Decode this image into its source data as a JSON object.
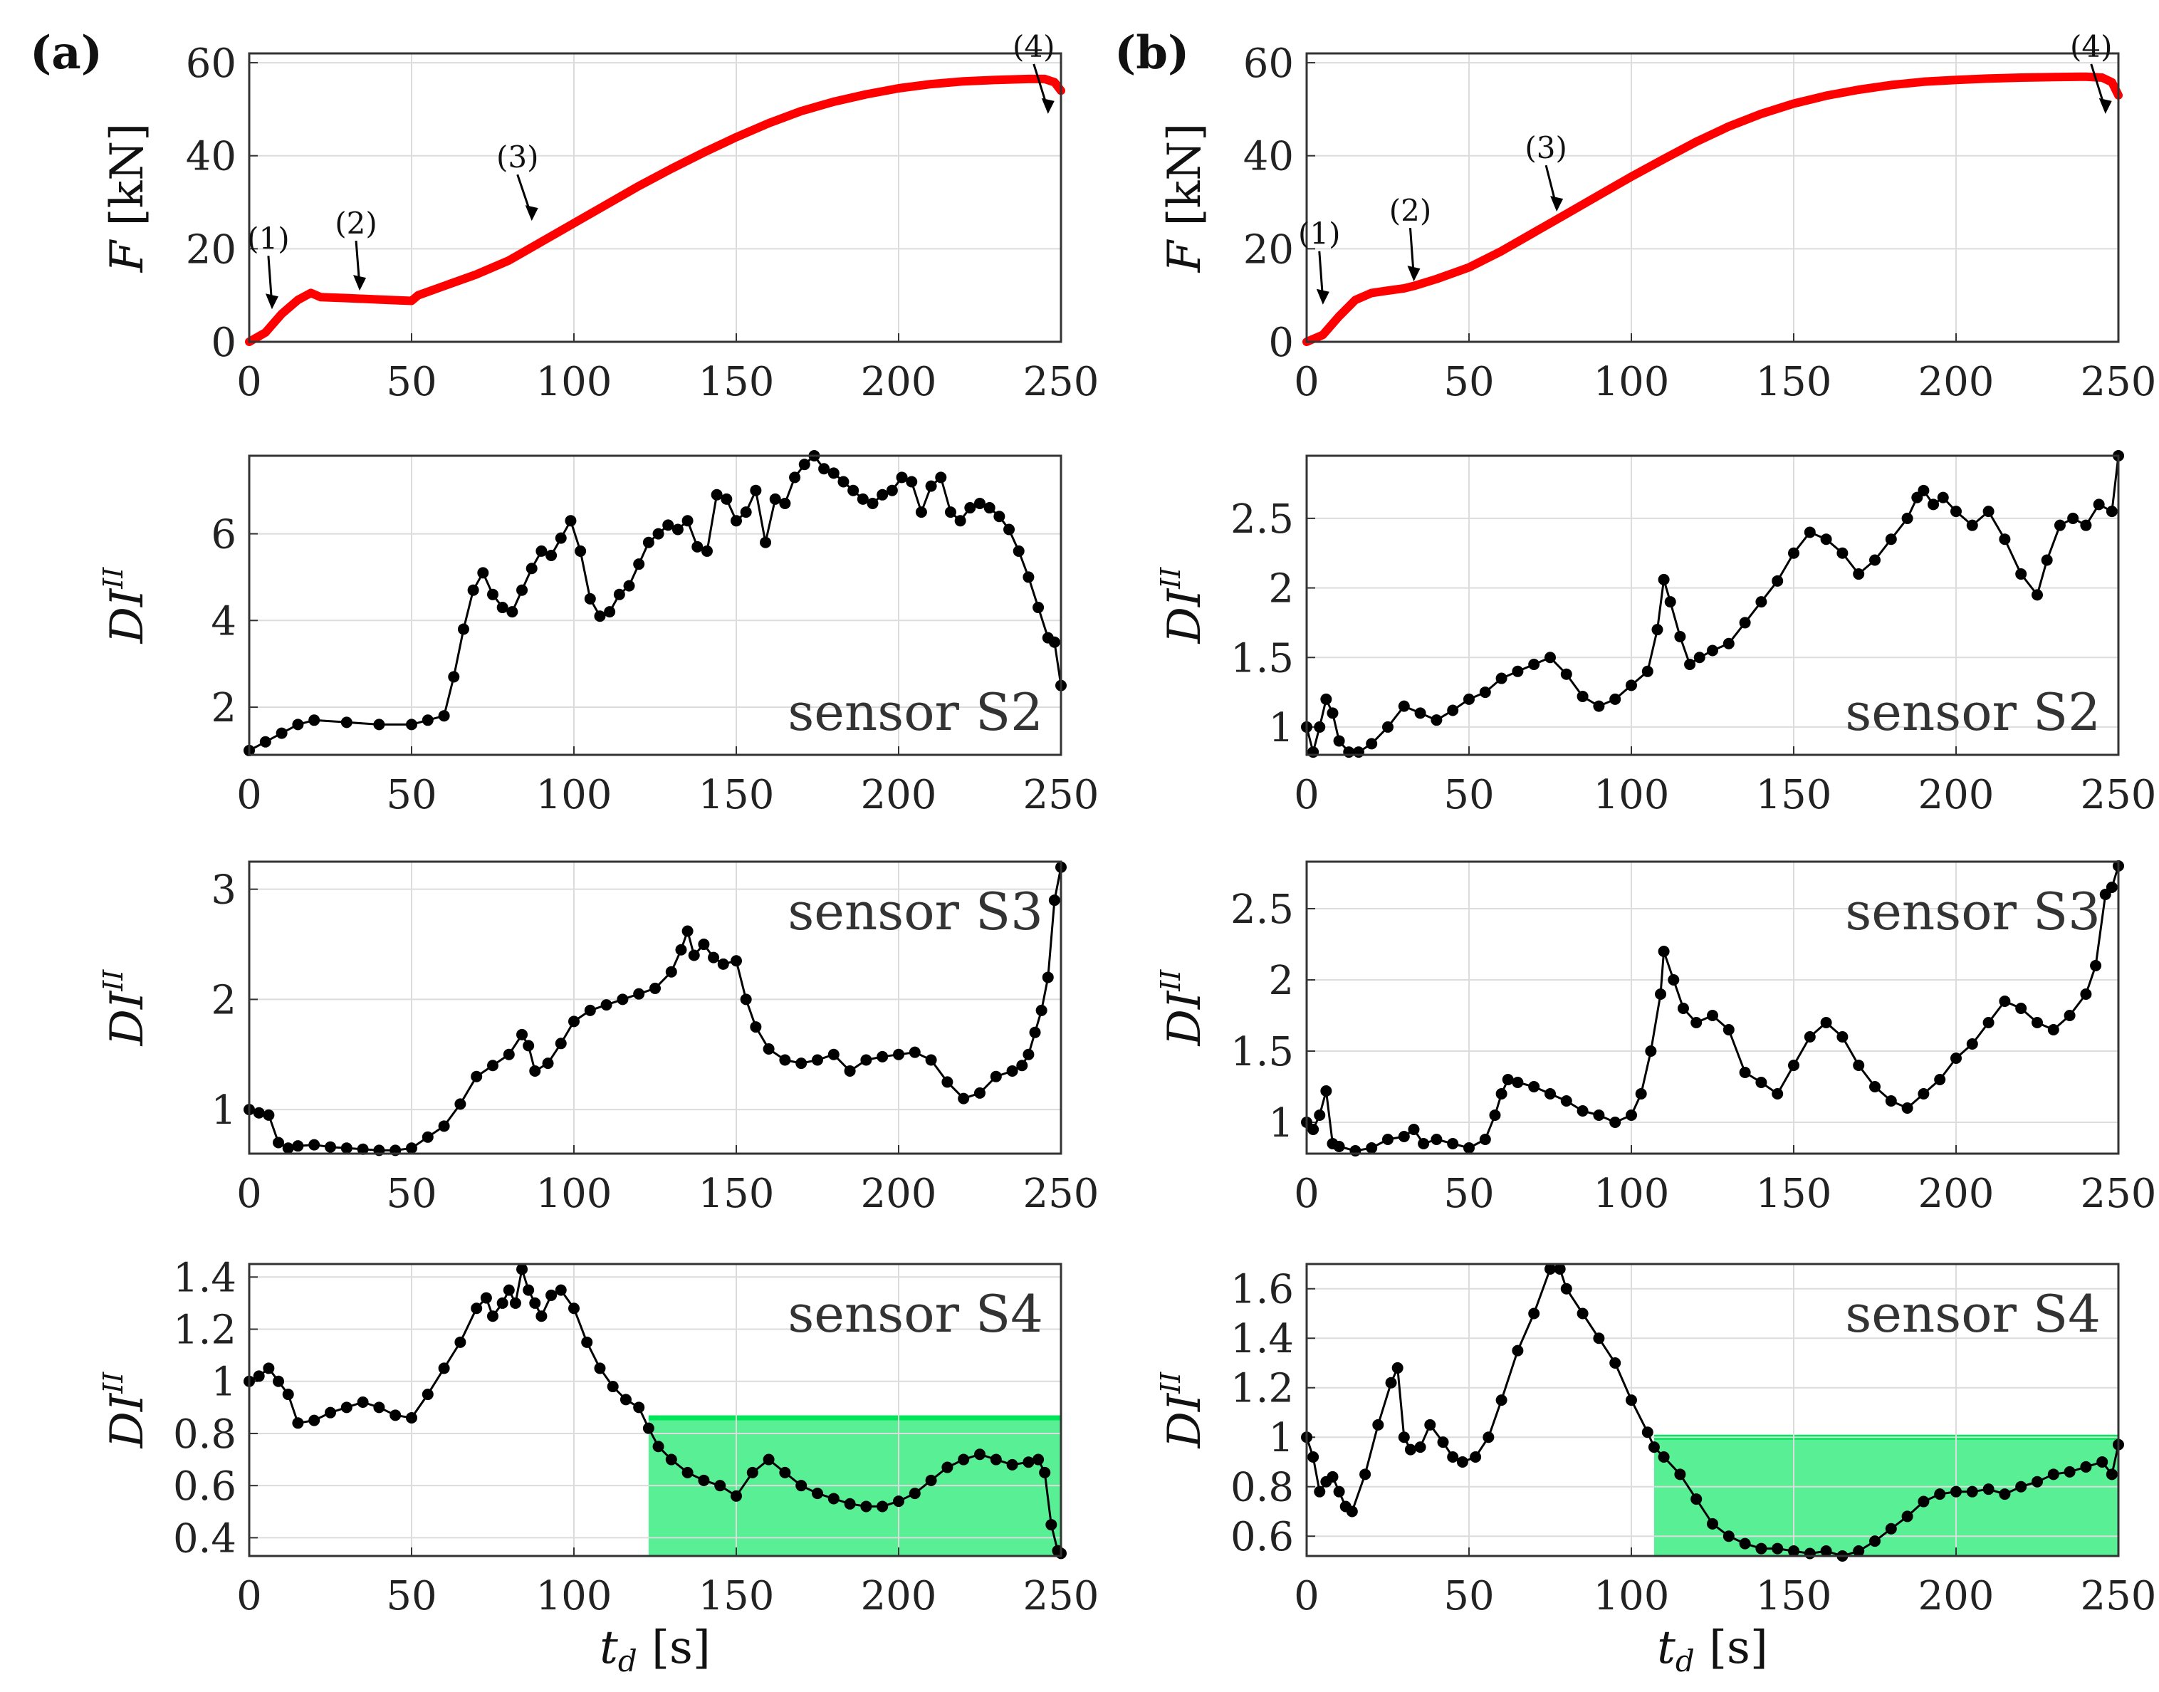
{
  "panel_labels": [
    "(a)",
    "(b)"
  ],
  "chart_data": [
    {
      "id": "a-force",
      "type": "line",
      "panel": "(a)",
      "title": "",
      "xlabel": "",
      "ylabel": "F [kN]",
      "xlim": [
        0,
        250
      ],
      "ylim": [
        0,
        62
      ],
      "xticks": [
        0,
        50,
        100,
        150,
        200,
        250
      ],
      "yticks": [
        0,
        20,
        40,
        60
      ],
      "xtick_labels": [
        "0",
        "50",
        "100",
        "150",
        "200",
        "250"
      ],
      "ytick_labels": [
        "0",
        "20",
        "40",
        "60"
      ],
      "grid": true,
      "color": "#ff0000",
      "markers": false,
      "x": [
        0,
        5,
        10,
        15,
        19,
        22,
        30,
        40,
        50,
        52,
        60,
        70,
        80,
        90,
        100,
        110,
        120,
        130,
        140,
        150,
        160,
        170,
        180,
        190,
        200,
        210,
        220,
        230,
        240,
        245,
        248,
        250
      ],
      "y": [
        0,
        2,
        6,
        9,
        10.5,
        9.6,
        9.4,
        9.1,
        8.8,
        10,
        12,
        14.5,
        17.5,
        21.5,
        25.5,
        29.5,
        33.5,
        37.2,
        40.7,
        44,
        47,
        49.6,
        51.6,
        53.2,
        54.5,
        55.4,
        56,
        56.3,
        56.5,
        56.5,
        55.8,
        54
      ],
      "annotations": [
        {
          "text": "(1)",
          "x": 7,
          "y": 7
        },
        {
          "text": "(2)",
          "x": 34,
          "y": 11
        },
        {
          "text": "(3)",
          "x": 87,
          "y": 26
        },
        {
          "text": "(4)",
          "x": 246,
          "y": 49
        }
      ]
    },
    {
      "id": "a-s2",
      "type": "line",
      "panel": "(a)",
      "title": "",
      "xlabel": "",
      "ylabel": "DI^II",
      "legend_text": "sensor S2",
      "xlim": [
        0,
        250
      ],
      "ylim": [
        0.9,
        7.8
      ],
      "xticks": [
        0,
        50,
        100,
        150,
        200,
        250
      ],
      "yticks": [
        2,
        4,
        6
      ],
      "xtick_labels": [
        "0",
        "50",
        "100",
        "150",
        "200",
        "250"
      ],
      "ytick_labels": [
        "2",
        "4",
        "6"
      ],
      "grid": true,
      "color": "#000000",
      "markers": true,
      "x": [
        0,
        5,
        10,
        15,
        20,
        30,
        40,
        50,
        55,
        60,
        63,
        66,
        69,
        72,
        75,
        78,
        81,
        84,
        87,
        90,
        93,
        96,
        99,
        102,
        105,
        108,
        111,
        114,
        117,
        120,
        123,
        126,
        129,
        132,
        135,
        138,
        141,
        144,
        147,
        150,
        153,
        156,
        159,
        162,
        165,
        168,
        171,
        174,
        177,
        180,
        183,
        186,
        189,
        192,
        195,
        198,
        201,
        204,
        207,
        210,
        213,
        216,
        219,
        222,
        225,
        228,
        231,
        234,
        237,
        240,
        243,
        246,
        248,
        250
      ],
      "y": [
        1,
        1.2,
        1.4,
        1.6,
        1.7,
        1.65,
        1.6,
        1.6,
        1.7,
        1.8,
        2.7,
        3.8,
        4.7,
        5.1,
        4.6,
        4.3,
        4.2,
        4.7,
        5.2,
        5.6,
        5.5,
        5.9,
        6.3,
        5.6,
        4.5,
        4.1,
        4.2,
        4.6,
        4.8,
        5.3,
        5.8,
        6,
        6.2,
        6.1,
        6.3,
        5.7,
        5.6,
        6.9,
        6.8,
        6.3,
        6.5,
        7,
        5.8,
        6.8,
        6.7,
        7.3,
        7.6,
        7.8,
        7.5,
        7.4,
        7.2,
        7.0,
        6.8,
        6.7,
        6.9,
        7.0,
        7.3,
        7.2,
        6.5,
        7.1,
        7.3,
        6.5,
        6.3,
        6.6,
        6.7,
        6.6,
        6.4,
        6.1,
        5.6,
        5.0,
        4.3,
        3.6,
        3.5,
        2.5
      ]
    },
    {
      "id": "a-s3",
      "type": "line",
      "panel": "(a)",
      "title": "",
      "xlabel": "",
      "ylabel": "DI^II",
      "legend_text": "sensor S3",
      "xlim": [
        0,
        250
      ],
      "ylim": [
        0.6,
        3.25
      ],
      "xticks": [
        0,
        50,
        100,
        150,
        200,
        250
      ],
      "yticks": [
        1,
        2,
        3
      ],
      "xtick_labels": [
        "0",
        "50",
        "100",
        "150",
        "200",
        "250"
      ],
      "ytick_labels": [
        "1",
        "2",
        "3"
      ],
      "grid": true,
      "color": "#000000",
      "markers": true,
      "x": [
        0,
        3,
        6,
        9,
        12,
        15,
        20,
        25,
        30,
        35,
        40,
        45,
        50,
        55,
        60,
        65,
        70,
        75,
        80,
        84,
        86,
        88,
        92,
        96,
        100,
        105,
        110,
        115,
        120,
        125,
        130,
        133,
        135,
        137,
        140,
        143,
        146,
        150,
        153,
        156,
        160,
        165,
        170,
        175,
        180,
        185,
        190,
        195,
        200,
        205,
        210,
        215,
        220,
        225,
        230,
        235,
        238,
        240,
        242,
        244,
        246,
        248,
        250
      ],
      "y": [
        1,
        0.97,
        0.95,
        0.7,
        0.65,
        0.67,
        0.68,
        0.66,
        0.65,
        0.64,
        0.63,
        0.63,
        0.65,
        0.75,
        0.85,
        1.05,
        1.3,
        1.4,
        1.5,
        1.68,
        1.58,
        1.35,
        1.42,
        1.6,
        1.8,
        1.9,
        1.95,
        2.0,
        2.05,
        2.1,
        2.25,
        2.45,
        2.62,
        2.4,
        2.5,
        2.38,
        2.32,
        2.35,
        2.0,
        1.75,
        1.55,
        1.45,
        1.42,
        1.45,
        1.5,
        1.35,
        1.45,
        1.48,
        1.5,
        1.52,
        1.45,
        1.25,
        1.1,
        1.15,
        1.3,
        1.35,
        1.4,
        1.5,
        1.7,
        1.9,
        2.2,
        2.9,
        3.2
      ]
    },
    {
      "id": "a-s4",
      "type": "line",
      "panel": "(a)",
      "title": "",
      "xlabel": "t_d [s]",
      "ylabel": "DI^II",
      "legend_text": "sensor S4",
      "xlim": [
        0,
        250
      ],
      "ylim": [
        0.33,
        1.45
      ],
      "xticks": [
        0,
        50,
        100,
        150,
        200,
        250
      ],
      "yticks": [
        0.4,
        0.6,
        0.8,
        1,
        1.2,
        1.4
      ],
      "xtick_labels": [
        "0",
        "50",
        "100",
        "150",
        "200",
        "250"
      ],
      "ytick_labels": [
        "0.4",
        "0.6",
        "0.8",
        "1",
        "1.2",
        "1.4"
      ],
      "grid": true,
      "color": "#000000",
      "markers": true,
      "highlight": {
        "x_from": 123,
        "x_to": 250,
        "y_top": 0.86,
        "color": "#00e65a"
      },
      "x": [
        0,
        3,
        6,
        9,
        12,
        15,
        20,
        25,
        30,
        35,
        40,
        45,
        50,
        55,
        60,
        65,
        70,
        73,
        75,
        78,
        80,
        82,
        84,
        86,
        88,
        90,
        93,
        96,
        100,
        104,
        108,
        112,
        116,
        120,
        123,
        126,
        130,
        135,
        140,
        145,
        150,
        155,
        160,
        165,
        170,
        175,
        180,
        185,
        190,
        195,
        200,
        205,
        210,
        215,
        220,
        225,
        230,
        235,
        240,
        243,
        245,
        247,
        249,
        250
      ],
      "y": [
        1.0,
        1.02,
        1.05,
        1.0,
        0.95,
        0.84,
        0.85,
        0.88,
        0.9,
        0.92,
        0.9,
        0.87,
        0.86,
        0.95,
        1.05,
        1.15,
        1.28,
        1.32,
        1.25,
        1.3,
        1.35,
        1.3,
        1.43,
        1.35,
        1.3,
        1.25,
        1.33,
        1.35,
        1.28,
        1.15,
        1.05,
        0.98,
        0.93,
        0.9,
        0.82,
        0.75,
        0.7,
        0.65,
        0.62,
        0.6,
        0.56,
        0.65,
        0.7,
        0.65,
        0.6,
        0.57,
        0.55,
        0.53,
        0.52,
        0.52,
        0.54,
        0.57,
        0.62,
        0.67,
        0.7,
        0.72,
        0.7,
        0.68,
        0.69,
        0.7,
        0.65,
        0.45,
        0.35,
        0.34
      ]
    },
    {
      "id": "b-force",
      "type": "line",
      "panel": "(b)",
      "title": "",
      "xlabel": "",
      "ylabel": "F [kN]",
      "xlim": [
        0,
        250
      ],
      "ylim": [
        0,
        62
      ],
      "xticks": [
        0,
        50,
        100,
        150,
        200,
        250
      ],
      "yticks": [
        0,
        20,
        40,
        60
      ],
      "xtick_labels": [
        "0",
        "50",
        "100",
        "150",
        "200",
        "250"
      ],
      "ytick_labels": [
        "0",
        "20",
        "40",
        "60"
      ],
      "grid": true,
      "color": "#ff0000",
      "markers": false,
      "x": [
        0,
        5,
        10,
        15,
        20,
        25,
        30,
        33,
        40,
        50,
        60,
        70,
        80,
        90,
        100,
        110,
        120,
        130,
        140,
        150,
        160,
        170,
        180,
        190,
        200,
        210,
        220,
        230,
        240,
        245,
        248,
        250
      ],
      "y": [
        0,
        1.5,
        5.5,
        9,
        10.5,
        11,
        11.5,
        12,
        13.5,
        16,
        19.5,
        23.5,
        27.5,
        31.5,
        35.5,
        39.3,
        43,
        46.3,
        49,
        51.2,
        52.9,
        54.2,
        55.2,
        55.9,
        56.3,
        56.6,
        56.8,
        56.9,
        57,
        56.8,
        55.8,
        53
      ]
    },
    {
      "id": "b-s2",
      "type": "line",
      "panel": "(b)",
      "title": "",
      "xlabel": "",
      "ylabel": "DI^II",
      "legend_text": "sensor S2",
      "xlim": [
        0,
        250
      ],
      "ylim": [
        0.8,
        2.95
      ],
      "xticks": [
        0,
        50,
        100,
        150,
        200,
        250
      ],
      "yticks": [
        1,
        1.5,
        2,
        2.5
      ],
      "xtick_labels": [
        "0",
        "50",
        "100",
        "150",
        "200",
        "250"
      ],
      "ytick_labels": [
        "1",
        "1.5",
        "2",
        "2.5"
      ],
      "grid": true,
      "color": "#000000",
      "markers": true,
      "x": [
        0,
        2,
        4,
        6,
        8,
        10,
        13,
        16,
        20,
        25,
        30,
        35,
        40,
        45,
        50,
        55,
        60,
        65,
        70,
        75,
        80,
        85,
        90,
        95,
        100,
        105,
        108,
        110,
        112,
        115,
        118,
        121,
        125,
        130,
        135,
        140,
        145,
        150,
        155,
        160,
        165,
        170,
        175,
        180,
        185,
        188,
        190,
        193,
        196,
        200,
        205,
        210,
        215,
        220,
        225,
        228,
        232,
        236,
        240,
        244,
        248,
        250
      ],
      "y": [
        1.0,
        0.82,
        1.0,
        1.2,
        1.1,
        0.9,
        0.82,
        0.82,
        0.88,
        1.0,
        1.15,
        1.1,
        1.05,
        1.12,
        1.2,
        1.25,
        1.35,
        1.4,
        1.45,
        1.5,
        1.38,
        1.22,
        1.15,
        1.2,
        1.3,
        1.4,
        1.7,
        2.06,
        1.9,
        1.65,
        1.45,
        1.5,
        1.55,
        1.6,
        1.75,
        1.9,
        2.05,
        2.25,
        2.4,
        2.35,
        2.25,
        2.1,
        2.2,
        2.35,
        2.5,
        2.65,
        2.7,
        2.6,
        2.65,
        2.55,
        2.45,
        2.55,
        2.35,
        2.1,
        1.95,
        2.2,
        2.45,
        2.5,
        2.45,
        2.6,
        2.55,
        2.95
      ]
    },
    {
      "id": "b-s3",
      "type": "line",
      "panel": "(b)",
      "title": "",
      "xlabel": "",
      "ylabel": "DI^II",
      "legend_text": "sensor S3",
      "xlim": [
        0,
        250
      ],
      "ylim": [
        0.78,
        2.83
      ],
      "xticks": [
        0,
        50,
        100,
        150,
        200,
        250
      ],
      "yticks": [
        1,
        1.5,
        2,
        2.5
      ],
      "xtick_labels": [
        "0",
        "50",
        "100",
        "150",
        "200",
        "250"
      ],
      "ytick_labels": [
        "1",
        "1.5",
        "2",
        "2.5"
      ],
      "grid": true,
      "color": "#000000",
      "markers": true,
      "x": [
        0,
        2,
        4,
        6,
        8,
        10,
        15,
        20,
        25,
        30,
        33,
        36,
        40,
        45,
        50,
        55,
        58,
        60,
        62,
        65,
        70,
        75,
        80,
        85,
        90,
        95,
        100,
        103,
        106,
        109,
        110,
        113,
        116,
        120,
        125,
        130,
        135,
        140,
        145,
        150,
        155,
        160,
        165,
        170,
        175,
        180,
        185,
        190,
        195,
        200,
        205,
        210,
        215,
        220,
        225,
        230,
        235,
        240,
        243,
        246,
        248,
        250
      ],
      "y": [
        1.0,
        0.95,
        1.05,
        1.22,
        0.85,
        0.83,
        0.8,
        0.82,
        0.88,
        0.9,
        0.95,
        0.85,
        0.88,
        0.85,
        0.82,
        0.88,
        1.05,
        1.2,
        1.3,
        1.28,
        1.25,
        1.2,
        1.15,
        1.08,
        1.05,
        1.0,
        1.05,
        1.2,
        1.5,
        1.9,
        2.2,
        2.0,
        1.8,
        1.7,
        1.75,
        1.65,
        1.35,
        1.28,
        1.2,
        1.4,
        1.6,
        1.7,
        1.6,
        1.4,
        1.25,
        1.15,
        1.1,
        1.2,
        1.3,
        1.45,
        1.55,
        1.7,
        1.85,
        1.8,
        1.7,
        1.65,
        1.75,
        1.9,
        2.1,
        2.6,
        2.65,
        2.8
      ]
    },
    {
      "id": "b-s4",
      "type": "line",
      "panel": "(b)",
      "title": "",
      "xlabel": "t_d [s]",
      "ylabel": "DI^II",
      "legend_text": "sensor S4",
      "xlim": [
        0,
        250
      ],
      "ylim": [
        0.52,
        1.7
      ],
      "xticks": [
        0,
        50,
        100,
        150,
        200,
        250
      ],
      "yticks": [
        0.6,
        0.8,
        1,
        1.2,
        1.4,
        1.6
      ],
      "xtick_labels": [
        "0",
        "50",
        "100",
        "150",
        "200",
        "250"
      ],
      "ytick_labels": [
        "0.6",
        "0.8",
        "1",
        "1.2",
        "1.4",
        "1.6"
      ],
      "grid": true,
      "color": "#000000",
      "markers": true,
      "highlight": {
        "x_from": 107,
        "x_to": 250,
        "y_top": 1.0,
        "color": "#00e65a"
      },
      "x": [
        0,
        2,
        4,
        6,
        8,
        10,
        12,
        14,
        18,
        22,
        26,
        28,
        30,
        32,
        35,
        38,
        42,
        45,
        48,
        52,
        56,
        60,
        65,
        70,
        75,
        78,
        80,
        85,
        90,
        95,
        100,
        105,
        107,
        110,
        115,
        120,
        125,
        130,
        135,
        140,
        145,
        150,
        155,
        160,
        165,
        170,
        175,
        180,
        185,
        190,
        195,
        200,
        205,
        210,
        215,
        220,
        225,
        230,
        235,
        240,
        245,
        248,
        250
      ],
      "y": [
        1.0,
        0.92,
        0.78,
        0.82,
        0.84,
        0.78,
        0.72,
        0.7,
        0.85,
        1.05,
        1.22,
        1.28,
        1.0,
        0.95,
        0.96,
        1.05,
        0.98,
        0.92,
        0.9,
        0.92,
        1.0,
        1.15,
        1.35,
        1.5,
        1.68,
        1.68,
        1.6,
        1.5,
        1.4,
        1.3,
        1.15,
        1.02,
        0.96,
        0.92,
        0.85,
        0.75,
        0.65,
        0.6,
        0.57,
        0.55,
        0.55,
        0.54,
        0.53,
        0.54,
        0.52,
        0.54,
        0.58,
        0.63,
        0.68,
        0.74,
        0.77,
        0.78,
        0.78,
        0.79,
        0.77,
        0.8,
        0.82,
        0.85,
        0.86,
        0.88,
        0.9,
        0.85,
        0.97
      ]
    }
  ]
}
